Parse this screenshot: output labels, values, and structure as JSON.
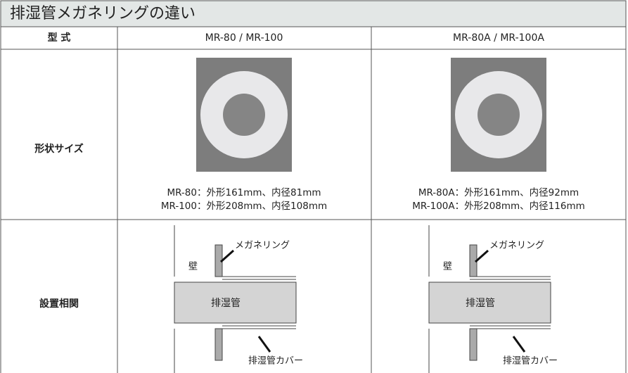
{
  "header": {
    "title": "排湿管メガネリングの違い"
  },
  "table": {
    "columns": [
      "型 式",
      "MR-80 / MR-100",
      "MR-80A / MR-100A"
    ],
    "rows": [
      {
        "label": "形状サイズ",
        "cells": [
          [
            "MR-80：外形161mm、内径81mm",
            "MR-100：外形208mm、内径108mm"
          ],
          [
            "MR-80A：外形161mm、内径92mm",
            "MR-100A：外形208mm、内径116mm"
          ]
        ]
      },
      {
        "label": "設置相関",
        "cells": [
          {
            "wall": "壁",
            "ring": "メガネリング",
            "pipe": "排湿管",
            "cover": "排湿管カバー"
          },
          {
            "wall": "壁",
            "ring": "メガネリング",
            "pipe": "排湿管",
            "cover": "排湿管カバー"
          }
        ]
      }
    ]
  }
}
